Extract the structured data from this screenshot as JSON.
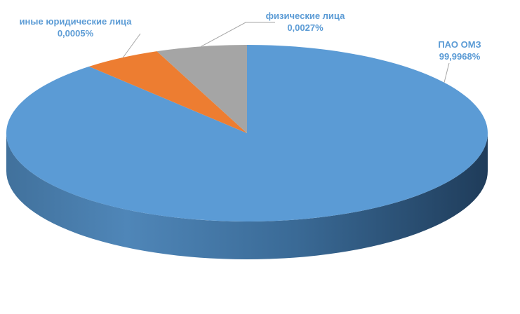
{
  "colors": {
    "pao_omz": "#5b9bd5",
    "other_legal": "#ed7d31",
    "individuals": "#a5a5a5",
    "label_text": "#5b9bd5",
    "leader_line": "#a6a6a6"
  },
  "chart_data": {
    "type": "pie",
    "style": "3d",
    "title": "",
    "categories": [
      "ПАО ОМЗ",
      "иные юридические лица",
      "физические лица"
    ],
    "values": [
      99.9968,
      0.0005,
      0.0027
    ],
    "value_labels": [
      "99,9968%",
      "0,0005%",
      "0,0027%"
    ],
    "legend": "none"
  },
  "labels": {
    "pao_omz": {
      "name": "ПАО ОМЗ",
      "value": "99,9968%"
    },
    "other_legal": {
      "name": "иные юридические лица",
      "value": "0,0005%"
    },
    "individuals": {
      "name": "физические лица",
      "value": "0,0027%"
    }
  }
}
